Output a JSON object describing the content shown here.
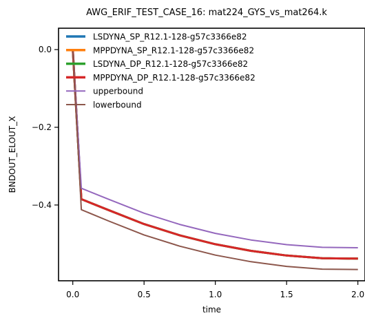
{
  "chart_data": {
    "type": "line",
    "title": "AWG_ERIF_TEST_CASE_16: mat224_GYS_vs_mat264.k",
    "xlabel": "time",
    "ylabel": "BNDOUT_ELOUT_X",
    "xlim": [
      -0.1,
      2.05
    ],
    "ylim": [
      -0.595,
      0.055
    ],
    "xticks": [
      0.0,
      0.5,
      1.0,
      1.5,
      2.0
    ],
    "xtick_labels": [
      "0.0",
      "0.5",
      "1.0",
      "1.5",
      "2.0"
    ],
    "yticks": [
      0.0,
      -0.2,
      -0.4
    ],
    "ytick_labels": [
      "0.0",
      "−0.2",
      "−0.4"
    ],
    "grid": false,
    "legend_position": "top-left",
    "series": [
      {
        "name": "LSDYNA_SP_R12.1-128-g57c3366e82",
        "color": "#1f77b4",
        "x": [
          0.0,
          0.06,
          0.25,
          0.5,
          0.75,
          1.0,
          1.25,
          1.5,
          1.75,
          2.0
        ],
        "y": [
          0.0,
          -0.385,
          -0.413,
          -0.449,
          -0.478,
          -0.501,
          -0.518,
          -0.53,
          -0.537,
          -0.538
        ]
      },
      {
        "name": "MPPDYNA_SP_R12.1-128-g57c3366e82",
        "color": "#ff7f0e",
        "x": [
          0.0,
          0.06,
          0.25,
          0.5,
          0.75,
          1.0,
          1.25,
          1.5,
          1.75,
          2.0
        ],
        "y": [
          0.0,
          -0.385,
          -0.413,
          -0.449,
          -0.478,
          -0.501,
          -0.518,
          -0.53,
          -0.537,
          -0.538
        ]
      },
      {
        "name": "LSDYNA_DP_R12.1-128-g57c3366e82",
        "color": "#2ca02c",
        "x": [
          0.0,
          0.06,
          0.25,
          0.5,
          0.75,
          1.0,
          1.25,
          1.5,
          1.75,
          2.0
        ],
        "y": [
          0.0,
          -0.385,
          -0.413,
          -0.449,
          -0.478,
          -0.501,
          -0.518,
          -0.53,
          -0.537,
          -0.538
        ]
      },
      {
        "name": "MPPDYNA_DP_R12.1-128-g57c3366e82",
        "color": "#d62728",
        "x": [
          0.0,
          0.06,
          0.25,
          0.5,
          0.75,
          1.0,
          1.25,
          1.5,
          1.75,
          2.0
        ],
        "y": [
          0.0,
          -0.385,
          -0.413,
          -0.449,
          -0.478,
          -0.501,
          -0.518,
          -0.53,
          -0.537,
          -0.538
        ]
      },
      {
        "name": "upperbound",
        "color": "#9467bd",
        "x": [
          0.0,
          0.06,
          0.25,
          0.5,
          0.75,
          1.0,
          1.25,
          1.5,
          1.75,
          2.0
        ],
        "y": [
          0.0,
          -0.357,
          -0.385,
          -0.421,
          -0.45,
          -0.473,
          -0.49,
          -0.502,
          -0.509,
          -0.51
        ]
      },
      {
        "name": "lowerbound",
        "color": "#8c564b",
        "x": [
          0.0,
          0.06,
          0.25,
          0.5,
          0.75,
          1.0,
          1.25,
          1.5,
          1.75,
          2.0
        ],
        "y": [
          0.0,
          -0.412,
          -0.441,
          -0.477,
          -0.506,
          -0.529,
          -0.546,
          -0.558,
          -0.565,
          -0.566
        ]
      }
    ]
  }
}
